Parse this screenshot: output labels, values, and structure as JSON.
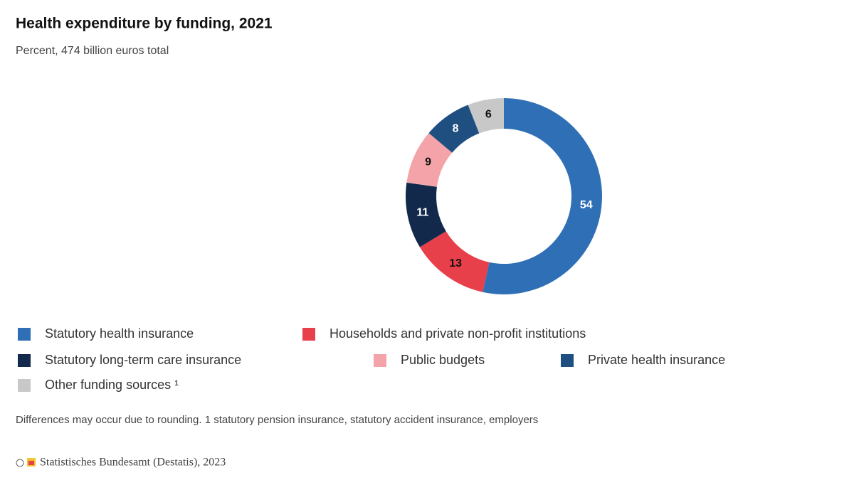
{
  "chart_data": {
    "type": "donut",
    "title": "Health expenditure by funding, 2021",
    "subtitle": "Percent, 474 billion euros total",
    "series": [
      {
        "name": "Statutory health insurance",
        "color": "#2f6fb5",
        "values": [
          54
        ]
      },
      {
        "name": "Households and private non-profit institutions",
        "color": "#e8404a",
        "values": [
          13
        ]
      },
      {
        "name": "Statutory long-term care insurance",
        "color": "#13294b",
        "values": [
          11
        ]
      },
      {
        "name": "Public budgets",
        "color": "#f4a4a8",
        "values": [
          9
        ]
      },
      {
        "name": "Private health insurance",
        "color": "#1f4f80",
        "values": [
          8
        ]
      },
      {
        "name": "Other funding sources ¹",
        "color": "#c8c8c8",
        "values": [
          6
        ]
      }
    ],
    "note": "Differences may occur due to rounding. 1 statutory pension insurance, statutory accident insurance, employers",
    "source": "Statistisches Bundesamt (Destatis), 2023"
  }
}
